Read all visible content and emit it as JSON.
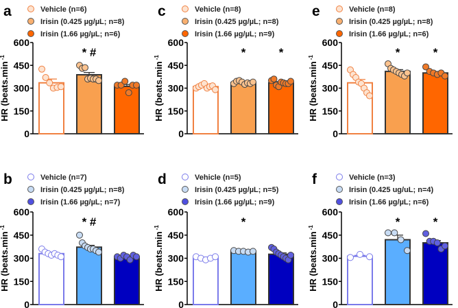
{
  "chart_data": [
    {
      "panel": "a",
      "type": "bar",
      "ylabel": "HR (beats.min",
      "ylabel_sup": "-1",
      "ylim": [
        0,
        600
      ],
      "yticks": [
        0,
        150,
        300,
        450,
        600
      ],
      "theme": "orange",
      "categories": [
        "Vehicle (n=6)",
        "Irisin (0.425 µg/µL; n=8)",
        "Irisin (1.66 µg/µL; n=6)"
      ],
      "values": [
        335,
        388,
        312
      ],
      "sem": [
        25,
        15,
        12
      ],
      "annotations": [
        "",
        "* #",
        ""
      ],
      "points": [
        [
          425,
          370,
          335,
          300,
          305,
          310
        ],
        [
          450,
          430,
          435,
          360,
          365,
          360,
          360,
          350
        ],
        [
          320,
          320,
          345,
          270,
          320,
          320
        ]
      ]
    },
    {
      "panel": "c",
      "type": "bar",
      "ylabel": "HR (beats.min",
      "ylabel_sup": "-1",
      "ylim": [
        0,
        600
      ],
      "yticks": [
        0,
        150,
        300,
        450,
        600
      ],
      "theme": "orange",
      "categories": [
        "Vehicle (n=8)",
        "Irisin (0.425 µg/µL; n=8)",
        "Irisin (1.66 µg/µL; n=9)"
      ],
      "values": [
        310,
        337,
        335
      ],
      "sem": [
        8,
        5,
        8
      ],
      "annotations": [
        "",
        "*",
        "*"
      ],
      "points": [
        [
          300,
          310,
          320,
          330,
          300,
          310,
          315,
          290
        ],
        [
          330,
          345,
          350,
          340,
          325,
          335,
          330,
          340
        ],
        [
          350,
          360,
          320,
          310,
          340,
          335,
          330,
          330,
          345
        ]
      ]
    },
    {
      "panel": "e",
      "type": "bar",
      "ylabel": "HR (beats.min",
      "ylabel_sup": "-1",
      "ylim": [
        0,
        600
      ],
      "yticks": [
        0,
        150,
        300,
        450,
        600
      ],
      "theme": "orange",
      "categories": [
        "Vehicle (n=8)",
        "Irisin (0.425 µg/µL; n=8)",
        "Irisin (1.66 µg/µL; n=6)"
      ],
      "values": [
        335,
        410,
        400
      ],
      "sem": [
        22,
        12,
        10
      ],
      "annotations": [
        "",
        "*",
        "*"
      ],
      "points": [
        [
          420,
          390,
          370,
          340,
          330,
          300,
          270,
          250
        ],
        [
          460,
          430,
          420,
          410,
          400,
          390,
          380,
          400
        ],
        [
          440,
          410,
          400,
          390,
          400,
          380
        ]
      ]
    },
    {
      "panel": "b",
      "type": "bar",
      "ylabel": "HR (beats.min",
      "ylabel_sup": "-1",
      "ylim": [
        0,
        600
      ],
      "yticks": [
        0,
        150,
        300,
        450,
        600
      ],
      "theme": "blue",
      "categories": [
        "Vehicle (n=7)",
        "Irisin (0.425 µg/µL; n=8)",
        "Irisin (1.66 µg/µL; n=7)"
      ],
      "values": [
        330,
        372,
        310
      ],
      "sem": [
        8,
        12,
        5
      ],
      "annotations": [
        "",
        "* #",
        ""
      ],
      "points": [
        [
          360,
          340,
          330,
          320,
          330,
          320,
          310
        ],
        [
          450,
          400,
          380,
          370,
          360,
          360,
          350,
          340
        ],
        [
          310,
          300,
          320,
          310,
          290,
          320,
          310
        ]
      ]
    },
    {
      "panel": "d",
      "type": "bar",
      "ylabel": "HR (beats.min",
      "ylabel_sup": "-1",
      "ylim": [
        0,
        600
      ],
      "yticks": [
        0,
        150,
        300,
        450,
        600
      ],
      "theme": "blue",
      "categories": [
        "Vehicle (n=5)",
        "Irisin (0.425 µg/µL; n=5)",
        "Irisin (1.66 µg/µL; n=9)"
      ],
      "values": [
        302,
        345,
        326
      ],
      "sem": [
        6,
        3,
        9
      ],
      "annotations": [
        "",
        "*",
        ""
      ],
      "points": [
        [
          310,
          300,
          290,
          300,
          310
        ],
        [
          350,
          345,
          345,
          340,
          345
        ],
        [
          370,
          360,
          340,
          330,
          320,
          310,
          300,
          290,
          320
        ]
      ]
    },
    {
      "panel": "f",
      "type": "bar",
      "ylabel": "HR (beats.min",
      "ylabel_sup": "-1",
      "ylim": [
        0,
        600
      ],
      "yticks": [
        0,
        150,
        300,
        450,
        600
      ],
      "theme": "blue",
      "categories": [
        "Vehicle (n=3)",
        "Irisin (0.425 ug/uL; n=4)",
        "Irisin (1.66 µg/µL; n=6)"
      ],
      "values": [
        313,
        420,
        400
      ],
      "sem": [
        6,
        30,
        15
      ],
      "annotations": [
        "",
        "*",
        "*"
      ],
      "points": [
        [
          305,
          325,
          310
        ],
        [
          465,
          465,
          420,
          350
        ],
        [
          460,
          410,
          410,
          400,
          360,
          380
        ]
      ]
    }
  ],
  "themes": {
    "orange": {
      "bar": [
        "#ffffff",
        "#f9a04f",
        "#ff6600"
      ],
      "edge": [
        "#f08040",
        "#333333",
        "#333333"
      ],
      "point": [
        "#fde3d0",
        "#fcc38f",
        "#f07a28"
      ],
      "legend": [
        "#fde3d0",
        "#f9b070",
        "#ff6600"
      ]
    },
    "blue": {
      "bar": [
        "#ffffff",
        "#5aaeff",
        "#0000c0"
      ],
      "edge": [
        "#7a7aea",
        "#333333",
        "#333333"
      ],
      "point": [
        "#ffffff",
        "#c8dcf4",
        "#6060e0"
      ],
      "legend": [
        "#ffffff",
        "#c8dcf4",
        "#5050e0"
      ]
    }
  }
}
